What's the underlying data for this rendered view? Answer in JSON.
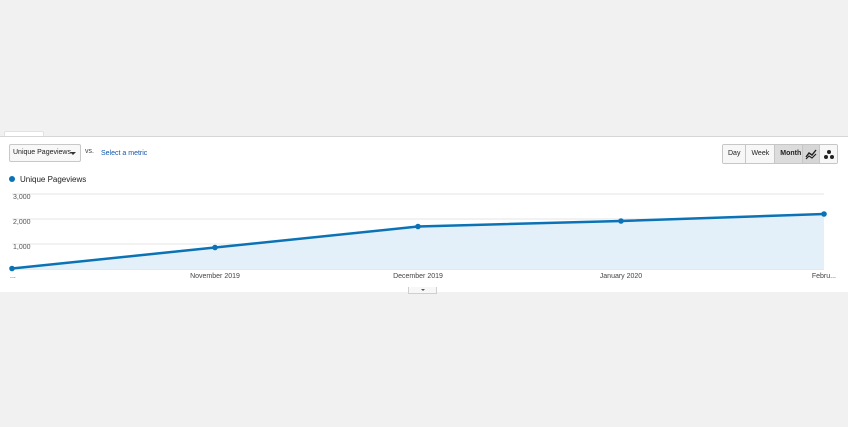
{
  "toolbar": {
    "metric_label": "Unique Pageviews",
    "vs_label": "vs.",
    "select_metric_label": "Select a metric",
    "period_buttons": [
      "Day",
      "Week",
      "Month"
    ],
    "active_period": "Month"
  },
  "view_buttons": [
    "line-chart-icon",
    "motion-chart-icon"
  ],
  "legend": {
    "series_label": "Unique Pageviews"
  },
  "colors": {
    "series": "#0b73b5",
    "area": "#e3f0f9",
    "grid": "#e6e6e6"
  },
  "chart_data": {
    "type": "area",
    "x": [
      "...",
      "November 2019",
      "December 2019",
      "January 2020",
      "Febru..."
    ],
    "series": [
      {
        "name": "Unique Pageviews",
        "values": [
          20,
          860,
          1700,
          1920,
          2200
        ]
      }
    ],
    "ylim": [
      0,
      3000
    ],
    "y_ticks": [
      "1,000",
      "2,000",
      "3,000"
    ],
    "grid": true,
    "legend": "top-left"
  }
}
